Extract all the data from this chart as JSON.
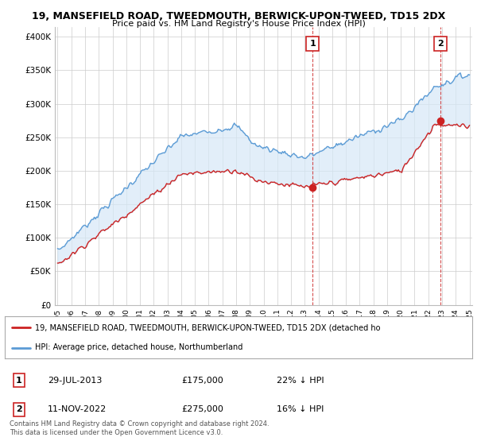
{
  "title1": "19, MANSEFIELD ROAD, TWEEDMOUTH, BERWICK-UPON-TWEED, TD15 2DX",
  "title2": "Price paid vs. HM Land Registry's House Price Index (HPI)",
  "ylabel_ticks": [
    "£0",
    "£50K",
    "£100K",
    "£150K",
    "£200K",
    "£250K",
    "£300K",
    "£350K",
    "£400K"
  ],
  "ytick_values": [
    0,
    50000,
    100000,
    150000,
    200000,
    250000,
    300000,
    350000,
    400000
  ],
  "ylim": [
    0,
    415000
  ],
  "xlim_start": 1994.8,
  "xlim_end": 2025.2,
  "hpi_color": "#5b9bd5",
  "hpi_fill_color": "#d6e8f7",
  "price_color": "#cc2222",
  "marker1_date": 2013.57,
  "marker1_price": 175000,
  "marker2_date": 2022.87,
  "marker2_price": 275000,
  "legend_line1": "19, MANSEFIELD ROAD, TWEEDMOUTH, BERWICK-UPON-TWEED, TD15 2DX (detached ho",
  "legend_line2": "HPI: Average price, detached house, Northumberland",
  "table_row1": [
    "1",
    "29-JUL-2013",
    "£175,000",
    "22% ↓ HPI"
  ],
  "table_row2": [
    "2",
    "11-NOV-2022",
    "£275,000",
    "16% ↓ HPI"
  ],
  "footnote": "Contains HM Land Registry data © Crown copyright and database right 2024.\nThis data is licensed under the Open Government Licence v3.0.",
  "bg_color": "#ffffff",
  "grid_color": "#cccccc"
}
